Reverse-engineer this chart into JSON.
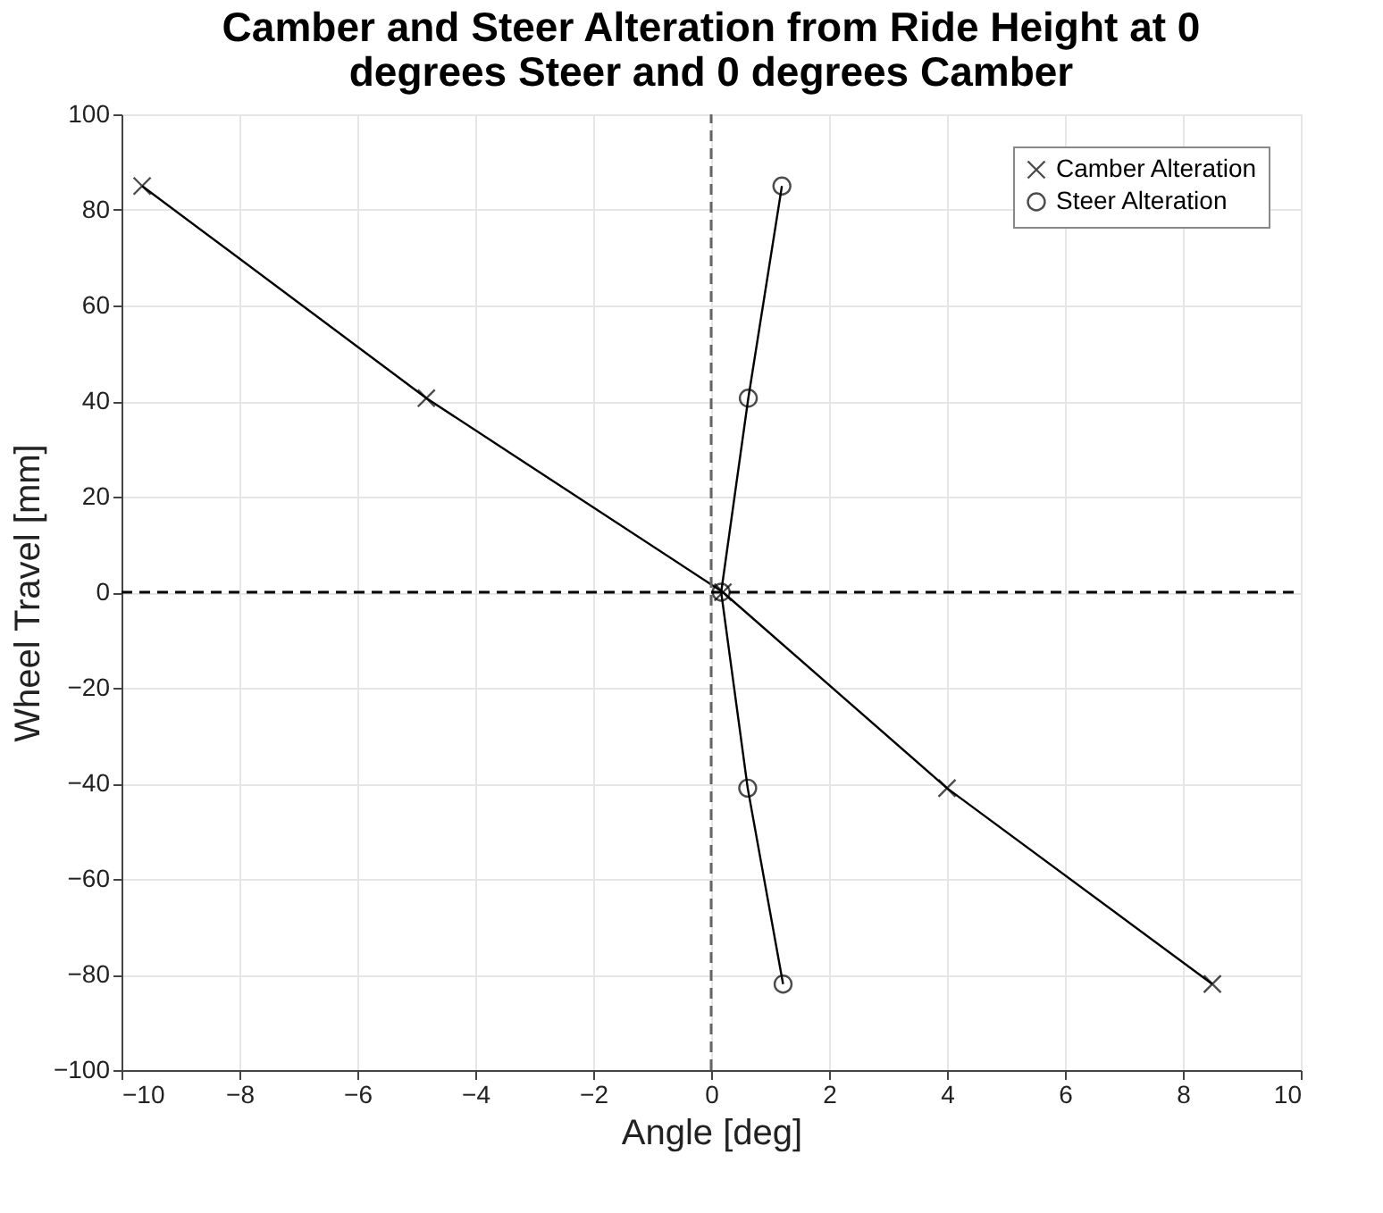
{
  "chart_data": {
    "type": "line",
    "title": "Camber and Steer Alteration from Ride Height at 0 degrees Steer and 0 degrees Camber",
    "xlabel": "Angle [deg]",
    "ylabel": "Wheel Travel [mm]",
    "series": [
      {
        "name": "Camber Alteration",
        "color": "#000000",
        "marker": "cross",
        "x": [
          -9.65,
          -4.83,
          0.2,
          4.0,
          8.5
        ],
        "values": [
          85,
          40.6,
          0,
          -41,
          -82
        ]
      },
      {
        "name": "Steer Alteration",
        "color": "#000000",
        "marker": "circle",
        "x": [
          1.2,
          0.63,
          0.17,
          0.62,
          1.22
        ],
        "values": [
          85,
          40.6,
          0,
          -41,
          -82
        ]
      }
    ],
    "xlim": [
      -10,
      10
    ],
    "xticks": [
      -10,
      -8,
      -6,
      -4,
      -2,
      0,
      2,
      4,
      6,
      8,
      10
    ],
    "ylim": [
      -100,
      100
    ],
    "yticks": [
      -100,
      -80,
      -60,
      -40,
      -20,
      0,
      20,
      40,
      60,
      80,
      100
    ],
    "ref_lines": [
      {
        "axis": "x",
        "value": 0,
        "color": "#666666",
        "line_style": "dashed"
      },
      {
        "axis": "y",
        "value": 0,
        "color": "#000000",
        "line_style": "dashed"
      }
    ],
    "grid": true,
    "legend": "top right",
    "line_style": "solid"
  }
}
